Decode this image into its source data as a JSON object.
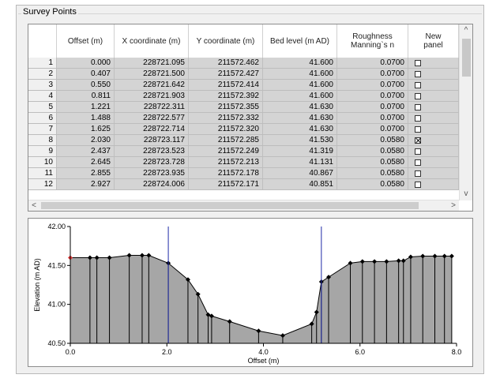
{
  "group_title": "Survey Points",
  "columns": [
    "",
    "Offset (m)",
    "X coordinate (m)",
    "Y coordinate (m)",
    "Bed level (m AD)",
    "Roughness\nManning`s n",
    "New\npanel"
  ],
  "rows": [
    {
      "n": "1",
      "offset": "0.000",
      "x": "228721.095",
      "y": "211572.462",
      "bed": "41.600",
      "rough": "0.0700",
      "checked": false
    },
    {
      "n": "2",
      "offset": "0.407",
      "x": "228721.500",
      "y": "211572.427",
      "bed": "41.600",
      "rough": "0.0700",
      "checked": false
    },
    {
      "n": "3",
      "offset": "0.550",
      "x": "228721.642",
      "y": "211572.414",
      "bed": "41.600",
      "rough": "0.0700",
      "checked": false
    },
    {
      "n": "4",
      "offset": "0.811",
      "x": "228721.903",
      "y": "211572.392",
      "bed": "41.600",
      "rough": "0.0700",
      "checked": false
    },
    {
      "n": "5",
      "offset": "1.221",
      "x": "228722.311",
      "y": "211572.355",
      "bed": "41.630",
      "rough": "0.0700",
      "checked": false
    },
    {
      "n": "6",
      "offset": "1.488",
      "x": "228722.577",
      "y": "211572.332",
      "bed": "41.630",
      "rough": "0.0700",
      "checked": false
    },
    {
      "n": "7",
      "offset": "1.625",
      "x": "228722.714",
      "y": "211572.320",
      "bed": "41.630",
      "rough": "0.0700",
      "checked": false
    },
    {
      "n": "8",
      "offset": "2.030",
      "x": "228723.117",
      "y": "211572.285",
      "bed": "41.530",
      "rough": "0.0580",
      "checked": true
    },
    {
      "n": "9",
      "offset": "2.437",
      "x": "228723.523",
      "y": "211572.249",
      "bed": "41.319",
      "rough": "0.0580",
      "checked": false
    },
    {
      "n": "10",
      "offset": "2.645",
      "x": "228723.728",
      "y": "211572.213",
      "bed": "41.131",
      "rough": "0.0580",
      "checked": false
    },
    {
      "n": "11",
      "offset": "2.855",
      "x": "228723.935",
      "y": "211572.178",
      "bed": "40.867",
      "rough": "0.0580",
      "checked": false
    },
    {
      "n": "12",
      "offset": "2.927",
      "x": "228724.006",
      "y": "211572.171",
      "bed": "40.851",
      "rough": "0.0580",
      "checked": false
    }
  ],
  "scroll_arrows": {
    "up": "^",
    "down": "v",
    "left": "<",
    "right": ">"
  },
  "chart_data": {
    "type": "area",
    "xlabel": "Offset (m)",
    "ylabel": "Elevation (m AD)",
    "xlim": [
      0,
      8
    ],
    "ylim": [
      40.5,
      42
    ],
    "xticks": [
      "0.0",
      "2.0",
      "4.0",
      "6.0",
      "8.0"
    ],
    "yticks": [
      "40.50",
      "41.00",
      "41.50",
      "42.00"
    ],
    "grid": false,
    "colors": {
      "fill": "#a6a6a6",
      "line": "#000000",
      "marker": "#000000",
      "panel_line": "#1f2aa8",
      "first_point": "#e03030"
    },
    "points": [
      [
        0.0,
        41.6
      ],
      [
        0.407,
        41.6
      ],
      [
        0.55,
        41.6
      ],
      [
        0.811,
        41.6
      ],
      [
        1.221,
        41.63
      ],
      [
        1.488,
        41.63
      ],
      [
        1.625,
        41.63
      ],
      [
        2.03,
        41.53
      ],
      [
        2.437,
        41.319
      ],
      [
        2.645,
        41.131
      ],
      [
        2.855,
        40.867
      ],
      [
        2.927,
        40.851
      ],
      [
        3.3,
        40.78
      ],
      [
        3.9,
        40.66
      ],
      [
        4.4,
        40.6
      ],
      [
        5.0,
        40.75
      ],
      [
        5.1,
        40.9
      ],
      [
        5.2,
        41.29
      ],
      [
        5.35,
        41.35
      ],
      [
        5.8,
        41.53
      ],
      [
        6.05,
        41.55
      ],
      [
        6.3,
        41.55
      ],
      [
        6.55,
        41.55
      ],
      [
        6.8,
        41.56
      ],
      [
        6.9,
        41.56
      ],
      [
        7.05,
        41.61
      ],
      [
        7.3,
        41.62
      ],
      [
        7.55,
        41.62
      ],
      [
        7.75,
        41.62
      ],
      [
        7.9,
        41.62
      ]
    ],
    "panel_markers": [
      2.03,
      5.2
    ]
  }
}
